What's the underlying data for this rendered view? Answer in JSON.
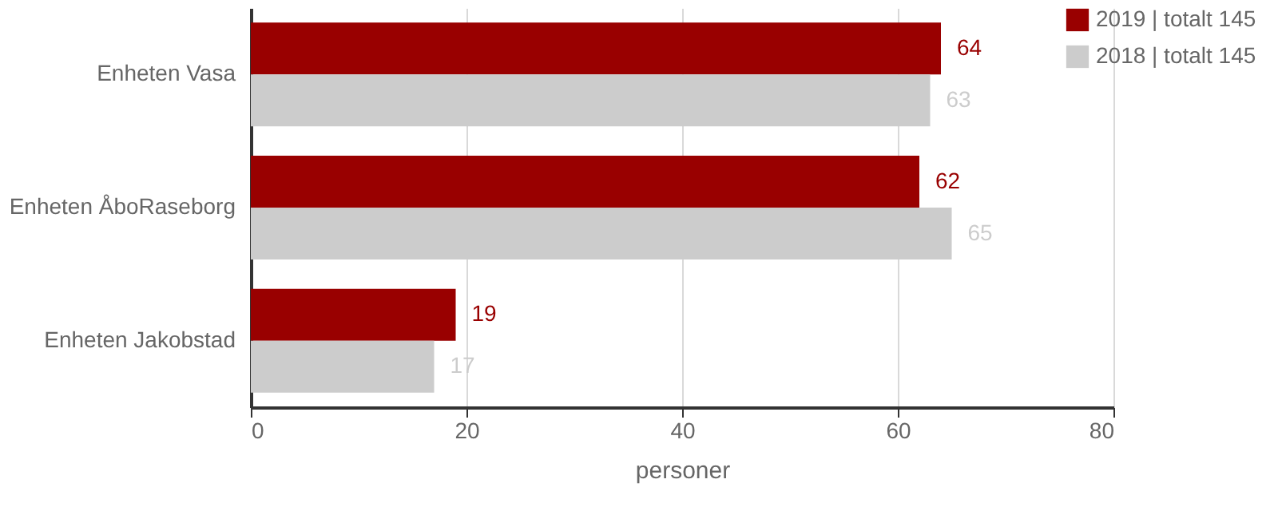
{
  "chart_data": {
    "type": "bar",
    "orientation": "horizontal",
    "xlabel": "personer",
    "categories": [
      "Enheten Vasa",
      "Enheten ÅboRaseborg",
      "Enheten Jakobstad"
    ],
    "series": [
      {
        "name": "2019 | totalt 145",
        "color": "#990000",
        "values": [
          64,
          62,
          19
        ]
      },
      {
        "name": "2018 | totalt 145",
        "color": "#cccccc",
        "values": [
          63,
          65,
          17
        ]
      }
    ],
    "xlim": [
      0,
      80
    ],
    "xticks": [
      0,
      20,
      40,
      60,
      80
    ],
    "grid": "x",
    "legend": "top right",
    "data_labels": true
  }
}
